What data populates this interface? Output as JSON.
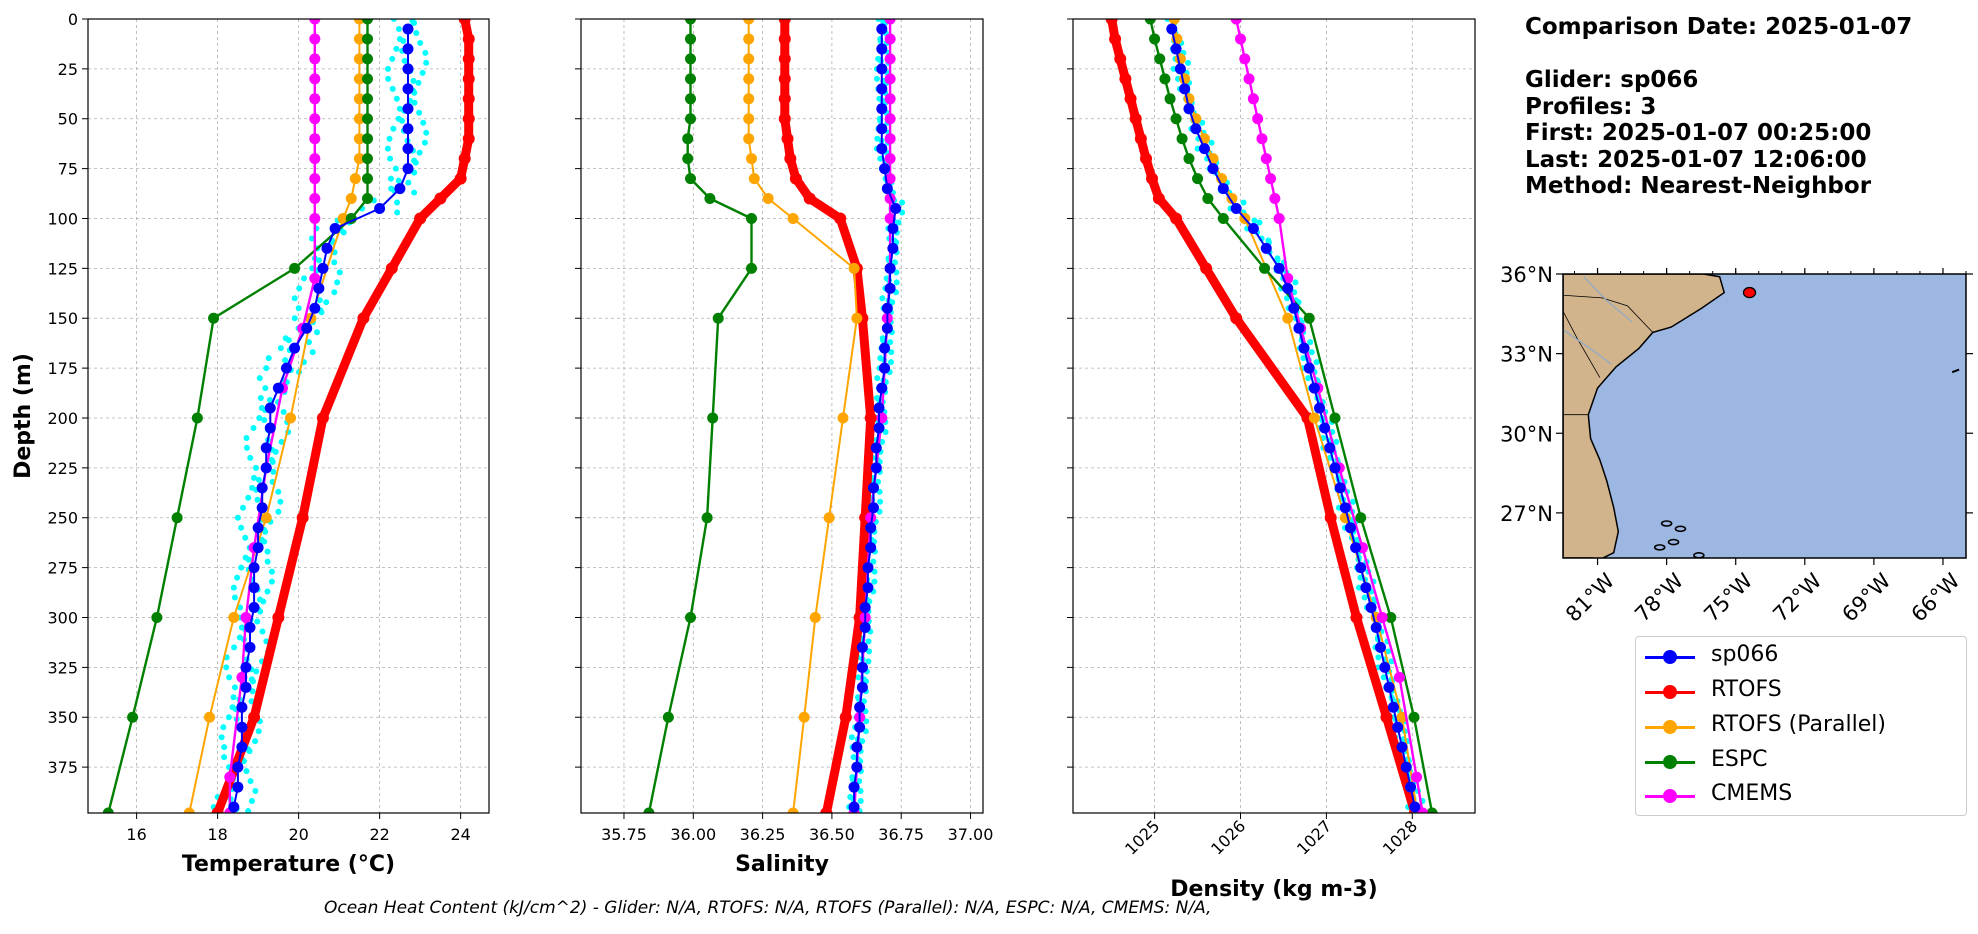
{
  "info": {
    "comparison_date": "Comparison Date: 2025-01-07",
    "glider": "Glider: sp066",
    "profiles": "Profiles: 3",
    "first": "First: 2025-01-07 00:25:00",
    "last": "Last: 2025-01-07 12:06:00",
    "method": "Method: Nearest-Neighbor"
  },
  "footer": "Ocean Heat Content (kJ/cm^2) - Glider: N/A,  RTOFS: N/A,  RTOFS (Parallel): N/A,  ESPC: N/A,  CMEMS: N/A,",
  "legend": [
    {
      "label": "sp066",
      "color": "#0000ff"
    },
    {
      "label": "RTOFS",
      "color": "#ff0000"
    },
    {
      "label": "RTOFS (Parallel)",
      "color": "#ffa500"
    },
    {
      "label": "ESPC",
      "color": "#008000"
    },
    {
      "label": "CMEMS",
      "color": "#ff00ff"
    }
  ],
  "colors": {
    "glider_raw": "#00ffff",
    "land": "#d2b48c",
    "ocean": "#9bb7e2",
    "grid": "#b0b0b0"
  },
  "chart_data": [
    {
      "type": "line",
      "title": "",
      "xlabel": "Temperature (°C)",
      "ylabel": "Depth (m)",
      "xlim": [
        14.8,
        24.7
      ],
      "ylim": [
        398,
        0
      ],
      "xticks": [
        16,
        18,
        20,
        22,
        24
      ],
      "yticks": [
        0,
        25,
        50,
        75,
        100,
        125,
        150,
        175,
        200,
        225,
        250,
        275,
        300,
        325,
        350,
        375
      ],
      "grid": true,
      "series": [
        {
          "name": "sp066",
          "y": [
            5,
            15,
            25,
            35,
            45,
            55,
            65,
            75,
            85,
            95,
            105,
            115,
            125,
            135,
            145,
            155,
            165,
            175,
            185,
            195,
            205,
            215,
            225,
            235,
            245,
            255,
            265,
            275,
            285,
            295,
            305,
            315,
            325,
            335,
            345,
            355,
            365,
            375,
            385,
            395
          ],
          "x": [
            22.7,
            22.7,
            22.7,
            22.7,
            22.7,
            22.7,
            22.7,
            22.7,
            22.5,
            22.0,
            20.9,
            20.7,
            20.6,
            20.5,
            20.4,
            20.2,
            19.9,
            19.7,
            19.5,
            19.3,
            19.3,
            19.2,
            19.2,
            19.1,
            19.1,
            19.0,
            19.0,
            18.9,
            18.9,
            18.9,
            18.8,
            18.8,
            18.7,
            18.7,
            18.6,
            18.6,
            18.6,
            18.5,
            18.5,
            18.4
          ]
        },
        {
          "name": "RTOFS",
          "y": [
            0,
            10,
            20,
            30,
            40,
            50,
            60,
            70,
            80,
            90,
            100,
            125,
            150,
            200,
            250,
            300,
            350,
            398
          ],
          "x": [
            24.1,
            24.2,
            24.2,
            24.2,
            24.2,
            24.2,
            24.2,
            24.1,
            24.0,
            23.5,
            23.0,
            22.3,
            21.6,
            20.6,
            20.1,
            19.5,
            18.9,
            18.0
          ]
        },
        {
          "name": "RTOFS (Parallel)",
          "y": [
            0,
            10,
            20,
            30,
            40,
            50,
            60,
            70,
            80,
            90,
            100,
            150,
            200,
            250,
            300,
            350,
            398
          ],
          "x": [
            21.5,
            21.5,
            21.5,
            21.5,
            21.5,
            21.5,
            21.5,
            21.5,
            21.4,
            21.3,
            21.1,
            20.3,
            19.8,
            19.2,
            18.4,
            17.8,
            17.3
          ]
        },
        {
          "name": "ESPC",
          "y": [
            0,
            10,
            20,
            30,
            40,
            50,
            60,
            70,
            80,
            90,
            100,
            125,
            150,
            200,
            250,
            300,
            350,
            398
          ],
          "x": [
            21.7,
            21.7,
            21.7,
            21.7,
            21.7,
            21.7,
            21.7,
            21.7,
            21.7,
            21.7,
            21.3,
            19.9,
            17.9,
            17.5,
            17.0,
            16.5,
            15.9,
            15.3
          ]
        },
        {
          "name": "CMEMS",
          "y": [
            0,
            10,
            20,
            30,
            40,
            50,
            60,
            70,
            80,
            90,
            100,
            130,
            155,
            185,
            225,
            265,
            300,
            330,
            380,
            398
          ],
          "x": [
            20.4,
            20.4,
            20.4,
            20.4,
            20.4,
            20.4,
            20.4,
            20.4,
            20.4,
            20.4,
            20.4,
            20.4,
            20.1,
            19.6,
            19.2,
            18.9,
            18.7,
            18.6,
            18.3,
            18.3
          ]
        }
      ]
    },
    {
      "type": "line",
      "title": "",
      "xlabel": "Salinity",
      "ylabel": "",
      "xlim": [
        35.595,
        37.045
      ],
      "ylim": [
        398,
        0
      ],
      "xticks": [
        35.75,
        36.0,
        36.25,
        36.5,
        36.75,
        37.0
      ],
      "xtick_labels": [
        "35.75",
        "36.00",
        "36.25",
        "36.50",
        "36.75",
        "37.00"
      ],
      "grid": true,
      "series": [
        {
          "name": "sp066",
          "y": [
            5,
            15,
            25,
            35,
            45,
            55,
            65,
            75,
            85,
            95,
            105,
            115,
            125,
            135,
            145,
            155,
            165,
            175,
            185,
            195,
            205,
            215,
            225,
            235,
            245,
            255,
            265,
            275,
            285,
            295,
            305,
            315,
            325,
            335,
            345,
            355,
            365,
            375,
            385,
            395
          ],
          "x": [
            36.68,
            36.68,
            36.68,
            36.68,
            36.68,
            36.68,
            36.68,
            36.69,
            36.7,
            36.73,
            36.72,
            36.72,
            36.71,
            36.71,
            36.7,
            36.7,
            36.69,
            36.69,
            36.68,
            36.67,
            36.67,
            36.66,
            36.66,
            36.65,
            36.65,
            36.64,
            36.64,
            36.63,
            36.63,
            36.62,
            36.62,
            36.61,
            36.61,
            36.61,
            36.6,
            36.6,
            36.59,
            36.59,
            36.58,
            36.58
          ]
        },
        {
          "name": "RTOFS",
          "y": [
            0,
            10,
            20,
            30,
            40,
            50,
            60,
            70,
            80,
            90,
            100,
            125,
            150,
            200,
            250,
            300,
            350,
            398
          ],
          "x": [
            36.33,
            36.33,
            36.33,
            36.33,
            36.33,
            36.33,
            36.34,
            36.35,
            36.37,
            36.42,
            36.53,
            36.59,
            36.61,
            36.64,
            36.62,
            36.6,
            36.55,
            36.48
          ]
        },
        {
          "name": "RTOFS (Parallel)",
          "y": [
            0,
            10,
            20,
            30,
            40,
            50,
            60,
            70,
            80,
            90,
            100,
            125,
            150,
            200,
            250,
            300,
            350,
            398
          ],
          "x": [
            36.2,
            36.2,
            36.2,
            36.2,
            36.2,
            36.2,
            36.2,
            36.21,
            36.22,
            36.27,
            36.36,
            36.58,
            36.59,
            36.54,
            36.49,
            36.44,
            36.4,
            36.36
          ]
        },
        {
          "name": "ESPC",
          "y": [
            0,
            10,
            20,
            30,
            40,
            50,
            60,
            70,
            80,
            90,
            100,
            125,
            150,
            200,
            250,
            300,
            350,
            398
          ],
          "x": [
            35.99,
            35.99,
            35.99,
            35.99,
            35.99,
            35.99,
            35.98,
            35.98,
            35.99,
            36.06,
            36.21,
            36.21,
            36.09,
            36.07,
            36.05,
            35.99,
            35.91,
            35.84
          ]
        },
        {
          "name": "CMEMS",
          "y": [
            0,
            10,
            20,
            30,
            40,
            50,
            60,
            70,
            80,
            90,
            100,
            125,
            150,
            175,
            200,
            225,
            250,
            275,
            300,
            325,
            350,
            375,
            398
          ],
          "x": [
            36.71,
            36.71,
            36.71,
            36.71,
            36.71,
            36.71,
            36.71,
            36.71,
            36.71,
            36.71,
            36.71,
            36.71,
            36.7,
            36.69,
            36.68,
            36.66,
            36.64,
            36.63,
            36.62,
            36.61,
            36.6,
            36.59,
            36.58
          ]
        }
      ]
    },
    {
      "type": "line",
      "title": "",
      "xlabel": "Density (kg m-3)",
      "ylabel": "",
      "xlim": [
        1024.05,
        1028.73
      ],
      "ylim": [
        398,
        0
      ],
      "xticks": [
        1025,
        1026,
        1027,
        1028
      ],
      "grid": true,
      "series": [
        {
          "name": "sp066",
          "y": [
            5,
            15,
            25,
            35,
            45,
            55,
            65,
            75,
            85,
            95,
            105,
            115,
            125,
            135,
            145,
            155,
            165,
            175,
            185,
            195,
            205,
            215,
            225,
            235,
            245,
            255,
            265,
            275,
            285,
            295,
            305,
            315,
            325,
            335,
            345,
            355,
            365,
            375,
            385,
            395
          ],
          "x": [
            1025.2,
            1025.25,
            1025.3,
            1025.35,
            1025.4,
            1025.48,
            1025.58,
            1025.68,
            1025.8,
            1025.95,
            1026.15,
            1026.3,
            1026.45,
            1026.55,
            1026.62,
            1026.68,
            1026.74,
            1026.8,
            1026.86,
            1026.92,
            1026.98,
            1027.04,
            1027.1,
            1027.16,
            1027.22,
            1027.28,
            1027.34,
            1027.4,
            1027.46,
            1027.52,
            1027.58,
            1027.63,
            1027.68,
            1027.73,
            1027.78,
            1027.83,
            1027.88,
            1027.93,
            1027.98,
            1028.03
          ]
        },
        {
          "name": "RTOFS",
          "y": [
            0,
            10,
            20,
            30,
            40,
            50,
            60,
            70,
            80,
            90,
            100,
            125,
            150,
            200,
            250,
            300,
            350,
            398
          ],
          "x": [
            1024.5,
            1024.54,
            1024.6,
            1024.66,
            1024.72,
            1024.78,
            1024.84,
            1024.9,
            1024.97,
            1025.05,
            1025.25,
            1025.6,
            1025.95,
            1026.78,
            1027.05,
            1027.35,
            1027.7,
            1028.03
          ]
        },
        {
          "name": "RTOFS (Parallel)",
          "y": [
            0,
            10,
            20,
            30,
            40,
            50,
            60,
            70,
            80,
            90,
            100,
            150,
            200,
            250,
            300,
            350,
            398
          ],
          "x": [
            1025.23,
            1025.26,
            1025.3,
            1025.35,
            1025.4,
            1025.48,
            1025.58,
            1025.68,
            1025.78,
            1025.9,
            1026.05,
            1026.55,
            1026.86,
            1027.22,
            1027.58,
            1027.88,
            1028.06
          ]
        },
        {
          "name": "ESPC",
          "y": [
            0,
            10,
            20,
            30,
            40,
            50,
            60,
            70,
            80,
            90,
            100,
            125,
            150,
            200,
            250,
            300,
            350,
            398
          ],
          "x": [
            1024.95,
            1025.0,
            1025.06,
            1025.12,
            1025.18,
            1025.25,
            1025.32,
            1025.4,
            1025.5,
            1025.62,
            1025.8,
            1026.28,
            1026.8,
            1027.1,
            1027.4,
            1027.75,
            1028.02,
            1028.23
          ]
        },
        {
          "name": "CMEMS",
          "y": [
            0,
            10,
            20,
            30,
            40,
            50,
            60,
            70,
            80,
            90,
            100,
            130,
            155,
            185,
            225,
            265,
            300,
            330,
            380,
            398
          ],
          "x": [
            1025.95,
            1026.0,
            1026.05,
            1026.1,
            1026.15,
            1026.2,
            1026.25,
            1026.3,
            1026.35,
            1026.4,
            1026.45,
            1026.55,
            1026.7,
            1026.9,
            1027.15,
            1027.42,
            1027.65,
            1027.85,
            1028.05,
            1028.12
          ]
        }
      ]
    }
  ],
  "map": {
    "lon_range": [
      -82.5,
      -65.0
    ],
    "lat_range": [
      25.3,
      36.0
    ],
    "lon_ticks": [
      "81°W",
      "78°W",
      "75°W",
      "72°W",
      "69°W",
      "66°W"
    ],
    "lat_ticks": [
      "36°N",
      "33°N",
      "30°N",
      "27°N"
    ],
    "glider_position": {
      "lon": -74.4,
      "lat": 35.3
    }
  }
}
